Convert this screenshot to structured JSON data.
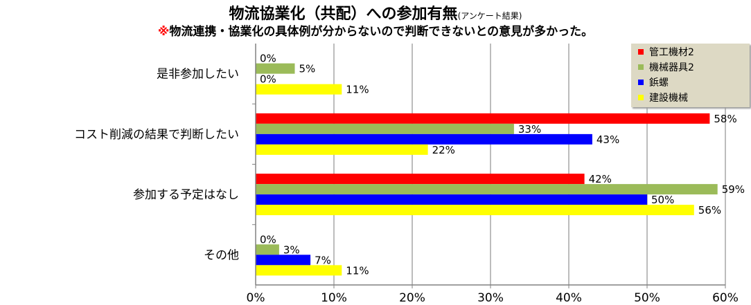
{
  "title": {
    "main": "物流協業化（共配）への参加有無",
    "note": "(アンケート結果)"
  },
  "subtitle": {
    "mark": "※",
    "text": "物流連携・協業化の具体例が分からないので判断できないとの意見が多かった。"
  },
  "chart_data": {
    "type": "bar",
    "orientation": "horizontal",
    "categories": [
      "是非参加したい",
      "コスト削減の結果で判断したい",
      "参加する予定はなし",
      "その他"
    ],
    "series": [
      {
        "name": "管工機材2",
        "color": "#ff0000",
        "values": [
          0,
          58,
          42,
          0
        ]
      },
      {
        "name": "機械器具2",
        "color": "#9bbb59",
        "values": [
          5,
          33,
          59,
          3
        ]
      },
      {
        "name": "鋲螺",
        "color": "#0000ff",
        "values": [
          0,
          43,
          50,
          7
        ]
      },
      {
        "name": "建設機械",
        "color": "#ffff00",
        "values": [
          11,
          22,
          56,
          11
        ]
      }
    ],
    "value_suffix": "%",
    "xlim": [
      0,
      60
    ],
    "xticks": [
      "0%",
      "10%",
      "20%",
      "30%",
      "40%",
      "50%",
      "60%"
    ],
    "grid": true,
    "legend_position": "top-right"
  }
}
